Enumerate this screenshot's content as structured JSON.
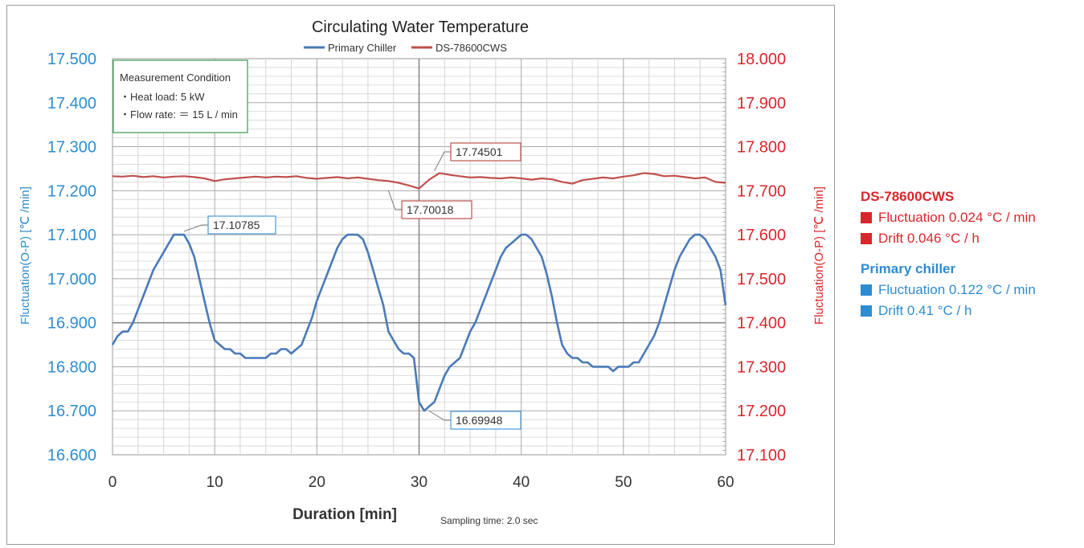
{
  "chart_data": {
    "type": "line",
    "title": "Circulating Water Temperature",
    "xlabel": "Duration [min]",
    "note": "Sampling time: 2.0 sec",
    "ylabel_left": "Fluctuation(O-P) [℃ /min]",
    "ylabel_right": "Fluctuation(O-P) [℃ /min]",
    "xlim": [
      0,
      60
    ],
    "x_ticks": [
      0,
      10,
      20,
      30,
      40,
      50,
      60
    ],
    "x_tick_labels": [
      "0",
      "10",
      "20",
      "30",
      "40",
      "50",
      "60"
    ],
    "ylim_left": [
      16.6,
      17.5
    ],
    "ylim_right": [
      17.1,
      18.0
    ],
    "y_ticks_left": [
      "16.600",
      "16.700",
      "16.800",
      "16.900",
      "17.000",
      "17.100",
      "17.200",
      "17.300",
      "17.400",
      "17.500"
    ],
    "y_ticks_right": [
      "17.100",
      "17.200",
      "17.300",
      "17.400",
      "17.500",
      "17.600",
      "17.700",
      "17.800",
      "17.900",
      "18.000"
    ],
    "grid": true,
    "legend": "top-center",
    "series": [
      {
        "name": "Primary Chiller",
        "axis": "left",
        "color": "#4a7ab8",
        "x": [
          0,
          0.5,
          1,
          1.5,
          2,
          2.5,
          3,
          3.5,
          4,
          4.5,
          5,
          5.5,
          6,
          6.5,
          7,
          7.5,
          8,
          8.5,
          9,
          9.5,
          10,
          10.5,
          11,
          11.5,
          12,
          12.5,
          13,
          13.5,
          14,
          14.5,
          15,
          15.5,
          16,
          16.5,
          17,
          17.5,
          18,
          18.5,
          19,
          19.5,
          20,
          20.5,
          21,
          21.5,
          22,
          22.5,
          23,
          23.5,
          24,
          24.5,
          25,
          25.5,
          26,
          26.5,
          27,
          27.5,
          28,
          28.5,
          29,
          29.5,
          30,
          30.5,
          31,
          31.5,
          32,
          32.5,
          33,
          33.5,
          34,
          34.5,
          35,
          35.5,
          36,
          36.5,
          37,
          37.5,
          38,
          38.5,
          39,
          39.5,
          40,
          40.5,
          41,
          41.5,
          42,
          42.5,
          43,
          43.5,
          44,
          44.5,
          45,
          45.5,
          46,
          46.5,
          47,
          47.5,
          48,
          48.5,
          49,
          49.5,
          50,
          50.5,
          51,
          51.5,
          52,
          52.5,
          53,
          53.5,
          54,
          54.5,
          55,
          55.5,
          56,
          56.5,
          57,
          57.5,
          58,
          58.5,
          59,
          59.5,
          60
        ],
        "y": [
          16.85,
          16.87,
          16.88,
          16.88,
          16.9,
          16.93,
          16.96,
          16.99,
          17.02,
          17.04,
          17.06,
          17.08,
          17.1,
          17.1,
          17.1,
          17.08,
          17.05,
          17.0,
          16.95,
          16.9,
          16.86,
          16.85,
          16.84,
          16.84,
          16.83,
          16.83,
          16.82,
          16.82,
          16.82,
          16.82,
          16.82,
          16.83,
          16.83,
          16.84,
          16.84,
          16.83,
          16.84,
          16.85,
          16.88,
          16.91,
          16.95,
          16.98,
          17.01,
          17.04,
          17.07,
          17.09,
          17.1,
          17.1,
          17.1,
          17.09,
          17.06,
          17.02,
          16.98,
          16.94,
          16.88,
          16.86,
          16.84,
          16.83,
          16.83,
          16.82,
          16.72,
          16.7,
          16.71,
          16.72,
          16.75,
          16.78,
          16.8,
          16.81,
          16.82,
          16.85,
          16.88,
          16.9,
          16.93,
          16.96,
          16.99,
          17.02,
          17.05,
          17.07,
          17.08,
          17.09,
          17.1,
          17.1,
          17.09,
          17.07,
          17.05,
          17.01,
          16.96,
          16.9,
          16.85,
          16.83,
          16.82,
          16.82,
          16.81,
          16.81,
          16.8,
          16.8,
          16.8,
          16.8,
          16.79,
          16.8,
          16.8,
          16.8,
          16.81,
          16.81,
          16.83,
          16.85,
          16.87,
          16.9,
          16.94,
          16.98,
          17.02,
          17.05,
          17.07,
          17.09,
          17.1,
          17.1,
          17.09,
          17.07,
          17.05,
          17.02,
          16.94
        ]
      },
      {
        "name": "DS-78600CWS",
        "axis": "right",
        "color": "#c0504d",
        "x": [
          0,
          1,
          2,
          3,
          4,
          5,
          6,
          7,
          8,
          9,
          10,
          11,
          12,
          13,
          14,
          15,
          16,
          17,
          18,
          19,
          20,
          21,
          22,
          23,
          24,
          25,
          26,
          27,
          28,
          29,
          30,
          31,
          32,
          33,
          34,
          35,
          36,
          37,
          38,
          39,
          40,
          41,
          42,
          43,
          44,
          45,
          46,
          47,
          48,
          49,
          50,
          51,
          52,
          53,
          54,
          55,
          56,
          57,
          58,
          59,
          60
        ],
        "y": [
          17.733,
          17.732,
          17.734,
          17.731,
          17.733,
          17.73,
          17.732,
          17.733,
          17.731,
          17.728,
          17.722,
          17.726,
          17.728,
          17.73,
          17.732,
          17.73,
          17.732,
          17.731,
          17.733,
          17.729,
          17.727,
          17.729,
          17.731,
          17.728,
          17.73,
          17.727,
          17.724,
          17.722,
          17.718,
          17.712,
          17.705,
          17.725,
          17.74,
          17.736,
          17.733,
          17.73,
          17.731,
          17.729,
          17.728,
          17.73,
          17.728,
          17.725,
          17.728,
          17.726,
          17.72,
          17.716,
          17.724,
          17.727,
          17.73,
          17.728,
          17.732,
          17.735,
          17.74,
          17.738,
          17.733,
          17.734,
          17.731,
          17.728,
          17.73,
          17.72,
          17.718
        ]
      }
    ],
    "condition_box": {
      "title": "Measurement Condition",
      "lines": [
        "・Heat load: 5 kW",
        "・Flow rate: ＝ 15 L / min"
      ]
    },
    "annotations": [
      {
        "label": "17.10785",
        "series": "Primary Chiller",
        "x": 7,
        "y": 17.10785,
        "color": "#4a9ad8"
      },
      {
        "label": "16.69948",
        "series": "Primary Chiller",
        "x": 31,
        "y": 16.69948,
        "color": "#4a9ad8"
      },
      {
        "label": "17.74501",
        "series": "DS-78600CWS",
        "x": 31.5,
        "y": 17.74501,
        "color": "#c0504d"
      },
      {
        "label": "17.70018",
        "series": "DS-78600CWS",
        "x": 27,
        "y": 17.70018,
        "color": "#c0504d"
      }
    ]
  },
  "specs": [
    {
      "heading": "DS-78600CWS",
      "color": "#d9262c",
      "items": [
        "Fluctuation 0.024 °C / min",
        "Drift 0.046 °C / h"
      ]
    },
    {
      "heading": "Primary chiller",
      "color": "#2e8ccf",
      "items": [
        "Fluctuation 0.122 °C / min",
        "Drift 0.41 °C / h"
      ]
    }
  ]
}
